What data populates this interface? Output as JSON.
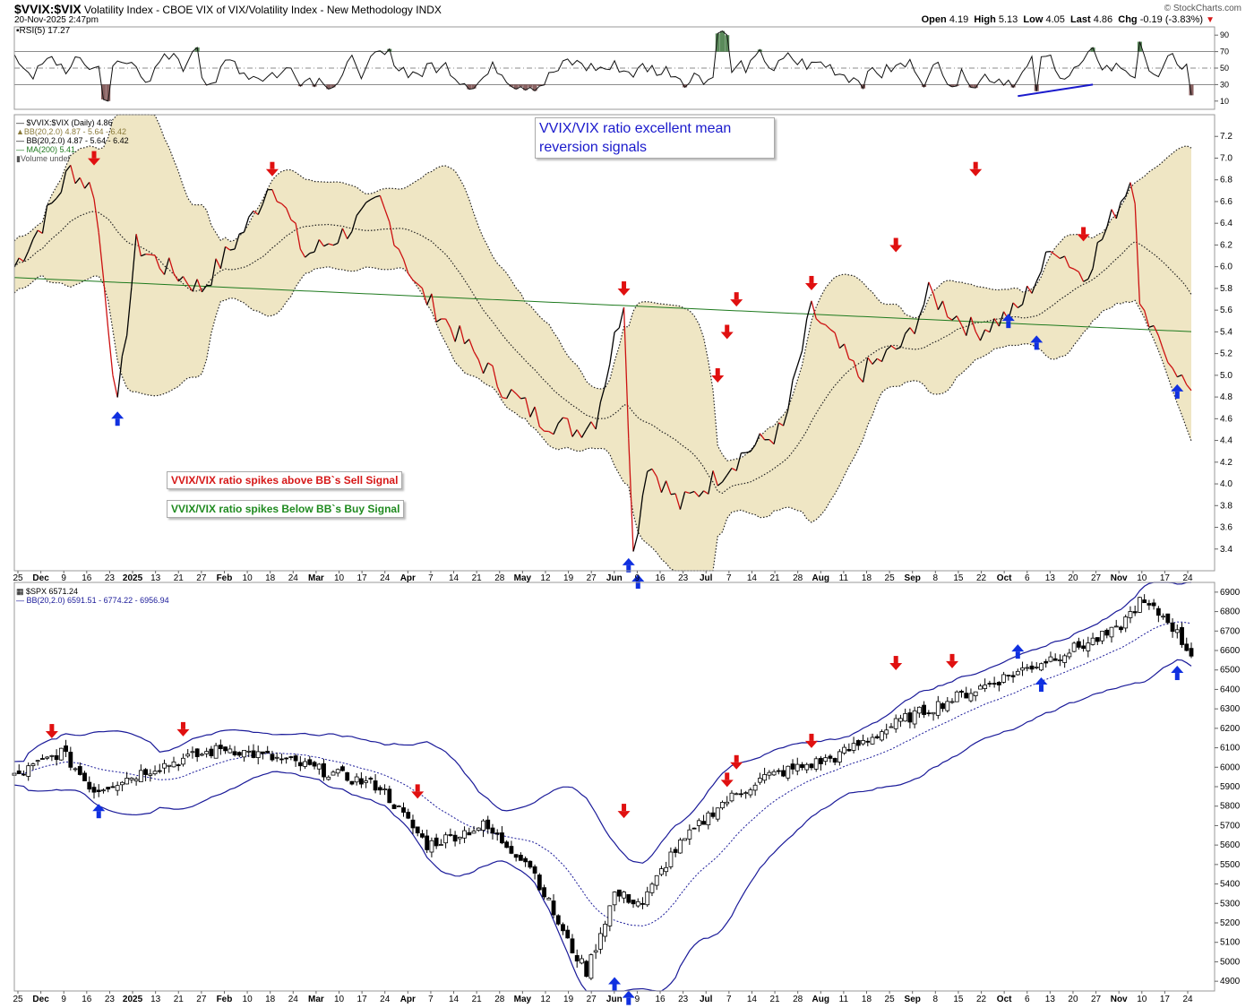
{
  "header": {
    "symbol": "$VVIX:$VIX",
    "description": "Volatility Index - CBOE VIX of VIX/Volatility Index - New Methodology",
    "exchange": "INDX",
    "date": "20-Nov-2025 2:47pm",
    "open_label": "Open",
    "open": "4.19",
    "high_label": "High",
    "high": "5.13",
    "low_label": "Low",
    "low": "4.05",
    "last_label": "Last",
    "last": "4.86",
    "chg_label": "Chg",
    "chg": "-0.19 (-3.83%)",
    "logo": "© StockCharts.com"
  },
  "colors": {
    "band_fill": "#efe6c4",
    "ratio_up": "#000000",
    "ratio_down": "#cc1111",
    "ma200": "#1e7a1e",
    "sell_arrow": "#e01010",
    "buy_arrow": "#1030e0",
    "spx_band": "#1a1a99",
    "rsi_overbought_fill": "#5a8a5a",
    "rsi_oversold_fill": "#8a6262"
  },
  "annotations": {
    "main": "VVIX/VIX ratio excellent mean reversion signals",
    "sell": "VVIX/VIX ratio spikes above BB`s Sell Signal",
    "buy": "VVIX/VIX ratio spikes Below BB`s Buy Signal"
  },
  "rsi_legend": "RSI(5) 17.27",
  "main_legend": [
    "$VVIX:$VIX (Daily) 4.86",
    "BB(20,2.0) 4.87 - 5.64 - 6.42",
    "BB(20,2.0) 4.87 - 5.64 - 6.42",
    "MA(200) 5.41",
    "Volume undef"
  ],
  "spx_legend": [
    "$SPX 6571.24",
    "BB(20,2.0) 6591.51 - 6774.22 - 6956.94"
  ],
  "x_axis_labels": [
    "25",
    "Dec",
    "9",
    "16",
    "23",
    "2025",
    "13",
    "21",
    "27",
    "Feb",
    "10",
    "18",
    "24",
    "Mar",
    "10",
    "17",
    "24",
    "Apr",
    "7",
    "14",
    "21",
    "28",
    "May",
    "12",
    "19",
    "27",
    "Jun",
    "9",
    "16",
    "23",
    "Jul",
    "7",
    "14",
    "21",
    "28",
    "Aug",
    "11",
    "18",
    "25",
    "Sep",
    "8",
    "15",
    "22",
    "Oct",
    "6",
    "13",
    "20",
    "27",
    "Nov",
    "10",
    "17",
    "24"
  ],
  "chart_data": [
    {
      "type": "line",
      "title": "RSI(5) 17.27",
      "ylim": [
        0,
        100
      ],
      "y_ticks": [
        10,
        30,
        50,
        70,
        90
      ],
      "levels": [
        30,
        50,
        70
      ],
      "last": 17.27
    },
    {
      "type": "line",
      "title": "$VVIX:$VIX (Daily) 4.86",
      "y_ticks": [
        3.4,
        3.6,
        3.8,
        4.0,
        4.2,
        4.4,
        4.6,
        4.8,
        5.0,
        5.2,
        5.4,
        5.6,
        5.8,
        6.0,
        6.2,
        6.4,
        6.6,
        6.8,
        7.0,
        7.2
      ],
      "ylim": [
        3.2,
        7.4
      ],
      "series": [
        {
          "name": "$VVIX:$VIX",
          "last": 4.86
        },
        {
          "name": "BB(20,2.0)",
          "lower": 4.87,
          "middle": 5.64,
          "upper": 6.42
        },
        {
          "name": "MA(200)",
          "last": 5.41
        }
      ],
      "sell_signals": 10,
      "buy_signals": 7
    },
    {
      "type": "candlestick",
      "title": "$SPX 6571.24",
      "y_ticks": [
        4900,
        5000,
        5100,
        5200,
        5300,
        5400,
        5500,
        5600,
        5700,
        5800,
        5900,
        6000,
        6100,
        6200,
        6300,
        6400,
        6500,
        6600,
        6700,
        6800,
        6900
      ],
      "ylim": [
        4850,
        6950
      ],
      "series": [
        {
          "name": "$SPX",
          "last": 6571.24
        },
        {
          "name": "BB(20,2.0)",
          "lower": 6591.51,
          "middle": 6774.22,
          "upper": 6956.94
        }
      ]
    }
  ]
}
